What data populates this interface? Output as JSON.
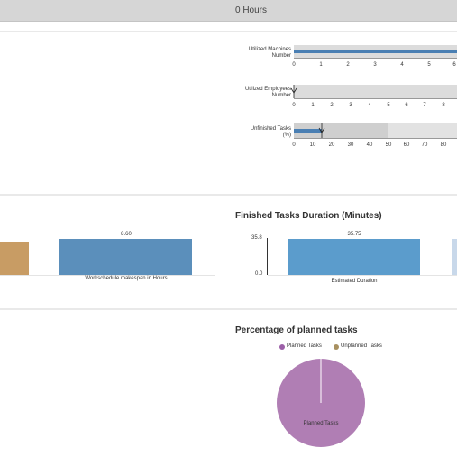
{
  "header": {
    "title": "0 Hours"
  },
  "bullets": {
    "machines": {
      "label_line1": "Utilized Machines",
      "label_line2": "Number",
      "ticks": [
        "0",
        "1",
        "2",
        "3",
        "4",
        "5",
        "6"
      ],
      "value": 6.1
    },
    "employees": {
      "label_line1": "Utilized Employees",
      "label_line2": "Number",
      "ticks": [
        "0",
        "1",
        "2",
        "3",
        "4",
        "5",
        "6",
        "7",
        "8"
      ],
      "value": 0
    },
    "unfinished": {
      "label_line1": "Unfinished Tasks",
      "label_line2": "(%)",
      "ticks": [
        "0",
        "10",
        "20",
        "30",
        "40",
        "50",
        "60",
        "70",
        "80"
      ],
      "value": 15
    }
  },
  "makespan": {
    "value_label": "8.60",
    "category": "Workschedule makespan in Hours"
  },
  "finished": {
    "title": "Finished Tasks Duration (Minutes)",
    "y_top": "35.8",
    "y_bottom": "0.0",
    "value_label": "35.75",
    "category": "Estimated Duration"
  },
  "planned": {
    "title": "Percentage of planned tasks",
    "legend": [
      "Planned Tasks",
      "Unplanned Tasks"
    ],
    "slice_label": "Planned Tasks"
  },
  "chart_data": [
    {
      "type": "bar",
      "categories": [
        "Workschedule makespan in Hours"
      ],
      "values": [
        8.6
      ]
    },
    {
      "type": "bar",
      "title": "Finished Tasks Duration (Minutes)",
      "categories": [
        "Estimated Duration"
      ],
      "values": [
        35.75
      ],
      "ylim": [
        0,
        35.8
      ]
    },
    {
      "type": "pie",
      "title": "Percentage of planned tasks",
      "categories": [
        "Planned Tasks",
        "Unplanned Tasks"
      ],
      "values": [
        100,
        0
      ]
    }
  ],
  "colors": {
    "blue": "#5b8fbb",
    "tan": "#c89c64",
    "purple": "#b07eb4",
    "unplanned": "#a89060",
    "lightblue": "#c8d8ea"
  }
}
